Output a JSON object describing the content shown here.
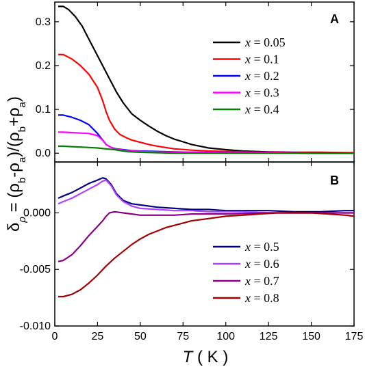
{
  "chart_data": [
    {
      "panel": "A",
      "type": "line",
      "xlim": [
        0,
        175
      ],
      "ylim": [
        -0.02,
        0.345
      ],
      "yticks": [
        "0.0",
        "0.1",
        "0.2",
        "0.3"
      ],
      "ytick_values": [
        0,
        0.1,
        0.2,
        0.3
      ],
      "legend_position": "top-right",
      "series": [
        {
          "name": "x = 0.05",
          "color": "#000000",
          "x": [
            2,
            5,
            8,
            12,
            16,
            20,
            24,
            28,
            32,
            36,
            40,
            45,
            50,
            55,
            60,
            65,
            70,
            75,
            80,
            90,
            100,
            110,
            125,
            140,
            155,
            175
          ],
          "y": [
            0.335,
            0.335,
            0.328,
            0.312,
            0.29,
            0.26,
            0.23,
            0.2,
            0.17,
            0.14,
            0.115,
            0.09,
            0.075,
            0.062,
            0.05,
            0.04,
            0.032,
            0.026,
            0.02,
            0.012,
            0.008,
            0.005,
            0.003,
            0.002,
            0.002,
            0.001
          ]
        },
        {
          "name": "x = 0.1",
          "color": "#ff0000",
          "x": [
            2,
            5,
            10,
            15,
            20,
            25,
            28,
            30,
            32,
            35,
            38,
            42,
            45,
            50,
            55,
            60,
            70,
            80,
            90,
            100,
            110,
            125,
            140,
            155,
            175
          ],
          "y": [
            0.225,
            0.225,
            0.215,
            0.2,
            0.18,
            0.15,
            0.12,
            0.095,
            0.075,
            0.055,
            0.043,
            0.035,
            0.03,
            0.025,
            0.02,
            0.016,
            0.01,
            0.007,
            0.005,
            0.004,
            0.003,
            0.002,
            0.001,
            0.001,
            0.001
          ]
        },
        {
          "name": "x = 0.2",
          "color": "#0000ff",
          "x": [
            2,
            5,
            10,
            15,
            20,
            25,
            28,
            30,
            33,
            36,
            40,
            45,
            50,
            60,
            70,
            80,
            100,
            125,
            150,
            175
          ],
          "y": [
            0.087,
            0.087,
            0.082,
            0.075,
            0.065,
            0.045,
            0.03,
            0.02,
            0.013,
            0.01,
            0.008,
            0.006,
            0.005,
            0.004,
            0.003,
            0.002,
            0.001,
            0.001,
            0.0,
            0.0
          ]
        },
        {
          "name": "x = 0.3",
          "color": "#ff00ff",
          "x": [
            2,
            5,
            10,
            15,
            20,
            25,
            28,
            30,
            33,
            36,
            40,
            45,
            50,
            60,
            70,
            80,
            100,
            125,
            150,
            175
          ],
          "y": [
            0.048,
            0.048,
            0.047,
            0.046,
            0.045,
            0.04,
            0.03,
            0.02,
            0.013,
            0.009,
            0.007,
            0.005,
            0.004,
            0.003,
            0.002,
            0.002,
            0.001,
            0.001,
            0.0,
            0.0
          ]
        },
        {
          "name": "x = 0.4",
          "color": "#008000",
          "x": [
            2,
            5,
            10,
            15,
            20,
            25,
            30,
            35,
            40,
            45,
            50,
            60,
            70,
            80,
            100,
            125,
            150,
            175
          ],
          "y": [
            0.016,
            0.016,
            0.015,
            0.014,
            0.013,
            0.012,
            0.01,
            0.008,
            0.005,
            0.003,
            0.002,
            0.001,
            0.0,
            0.0,
            0.0,
            0.0,
            0.0,
            0.0
          ]
        }
      ]
    },
    {
      "panel": "B",
      "type": "line",
      "xlim": [
        0,
        175
      ],
      "ylim": [
        -0.01,
        0.0045
      ],
      "yticks": [
        "-0.010",
        "-0.005",
        "0.000"
      ],
      "ytick_values": [
        -0.01,
        -0.005,
        0.0
      ],
      "legend_position": "bottom-right",
      "series": [
        {
          "name": "x = 0.5",
          "color": "#000080",
          "x": [
            2,
            5,
            10,
            15,
            20,
            25,
            28,
            30,
            33,
            36,
            40,
            45,
            50,
            60,
            70,
            80,
            90,
            100,
            110,
            125,
            140,
            155,
            170,
            175
          ],
          "y": [
            0.0013,
            0.0015,
            0.0018,
            0.0022,
            0.0026,
            0.0029,
            0.0031,
            0.003,
            0.0025,
            0.0017,
            0.0011,
            0.0008,
            0.0007,
            0.0005,
            0.0004,
            0.0003,
            0.0003,
            0.0002,
            0.0002,
            0.0002,
            0.0001,
            0.0001,
            0.0002,
            0.0002
          ]
        },
        {
          "name": "x = 0.6",
          "color": "#b040ff",
          "x": [
            2,
            5,
            10,
            15,
            20,
            25,
            28,
            30,
            33,
            36,
            40,
            45,
            50,
            60,
            70,
            80,
            90,
            100,
            110,
            125,
            140,
            155,
            170,
            175
          ],
          "y": [
            0.0008,
            0.001,
            0.0013,
            0.0017,
            0.0021,
            0.0025,
            0.0028,
            0.0029,
            0.0024,
            0.0016,
            0.001,
            0.0006,
            0.0004,
            0.0003,
            0.0002,
            0.0002,
            0.0001,
            0.0001,
            0.0001,
            0.0,
            0.0,
            0.0,
            0.0,
            0.0
          ]
        },
        {
          "name": "x = 0.7",
          "color": "#8b0080",
          "x": [
            2,
            5,
            10,
            15,
            20,
            25,
            28,
            30,
            32,
            35,
            40,
            45,
            50,
            60,
            70,
            80,
            100,
            125,
            150,
            175
          ],
          "y": [
            -0.0043,
            -0.0042,
            -0.0037,
            -0.0029,
            -0.002,
            -0.0012,
            -0.0007,
            -0.0003,
            0.0,
            0.0001,
            0.0,
            -0.0001,
            -0.0002,
            -0.0002,
            -0.0002,
            -0.0001,
            -0.0001,
            0.0,
            0.0,
            0.0
          ]
        },
        {
          "name": "x = 0.8",
          "color": "#a00000",
          "x": [
            2,
            5,
            10,
            15,
            20,
            25,
            30,
            35,
            40,
            45,
            50,
            55,
            60,
            65,
            70,
            75,
            80,
            90,
            100,
            110,
            120,
            130,
            140,
            150,
            160,
            170,
            175
          ],
          "y": [
            -0.0074,
            -0.0074,
            -0.0072,
            -0.0068,
            -0.0062,
            -0.0055,
            -0.0047,
            -0.004,
            -0.0034,
            -0.0028,
            -0.0023,
            -0.0019,
            -0.0016,
            -0.0013,
            -0.0011,
            -0.0009,
            -0.0007,
            -0.0005,
            -0.0003,
            -0.0002,
            -0.0001,
            0.0,
            0.0,
            0.0,
            -0.0001,
            -0.0002,
            -0.0003
          ]
        }
      ]
    }
  ],
  "labels": {
    "panel_a": "A",
    "panel_b": "B",
    "ylabel_delta": "δ",
    "ylabel_delta_sub": "ρ",
    "ylabel_rest": " = (ρ",
    "ylabel_b1": "b",
    "ylabel_minus": "-ρ",
    "ylabel_a1": "a",
    "ylabel_mid": ")/(ρ",
    "ylabel_b2": "b",
    "ylabel_plus": "+ρ",
    "ylabel_a2": "a",
    "ylabel_close": ")",
    "xlabel_var": "T",
    "xlabel_unit": " ( K )",
    "xticks": [
      "0",
      "25",
      "50",
      "75",
      "100",
      "125",
      "150",
      "175"
    ]
  }
}
